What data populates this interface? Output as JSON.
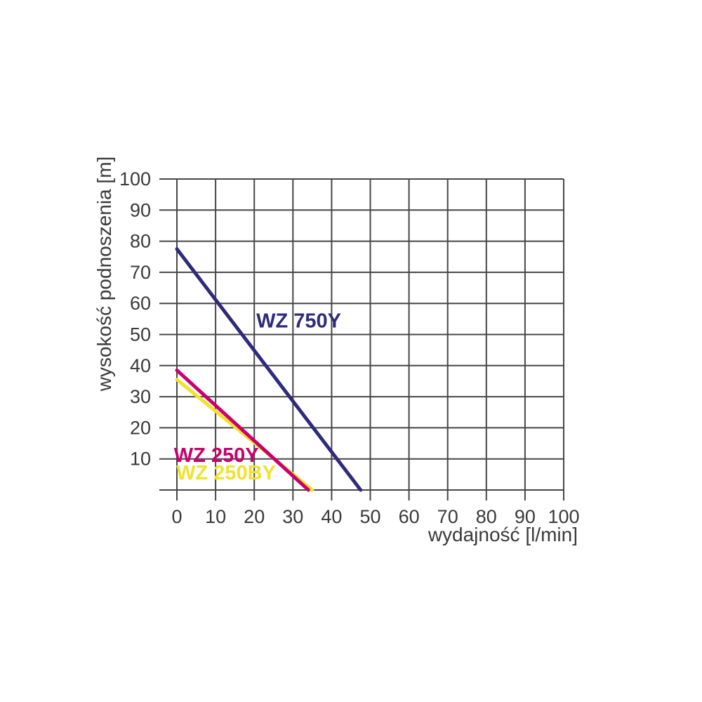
{
  "chart_data": {
    "type": "line",
    "title": "",
    "xlabel": "wydajność [l/min]",
    "ylabel": "wysokość podnoszenia [m]",
    "xlim": [
      0,
      100
    ],
    "ylim": [
      0,
      100
    ],
    "xticks": [
      0,
      10,
      20,
      30,
      40,
      50,
      60,
      70,
      80,
      90,
      100
    ],
    "yticks": [
      10,
      20,
      30,
      40,
      50,
      60,
      70,
      80,
      90,
      100
    ],
    "grid": true,
    "legend_position": "inline-curve-labels",
    "series": [
      {
        "name": "WZ 750Y",
        "color": "#2e2a7c",
        "points": [
          [
            0,
            77.5
          ],
          [
            47.5,
            0
          ]
        ],
        "label_x": 31.5,
        "label_y": 54.5
      },
      {
        "name": "WZ 250BY",
        "color": "#f0e22e",
        "points": [
          [
            0,
            35.5
          ],
          [
            35,
            0
          ]
        ],
        "label_x": 12.7,
        "label_y": 5.6
      },
      {
        "name": "WZ 250Y",
        "color": "#c8006c",
        "points": [
          [
            0,
            38.5
          ],
          [
            34,
            0
          ]
        ],
        "label_x": 10.2,
        "label_y": 11.3
      }
    ]
  },
  "colors": {
    "grid": "#474747",
    "tick_text": "#3a3a3a",
    "background": "#ffffff"
  }
}
